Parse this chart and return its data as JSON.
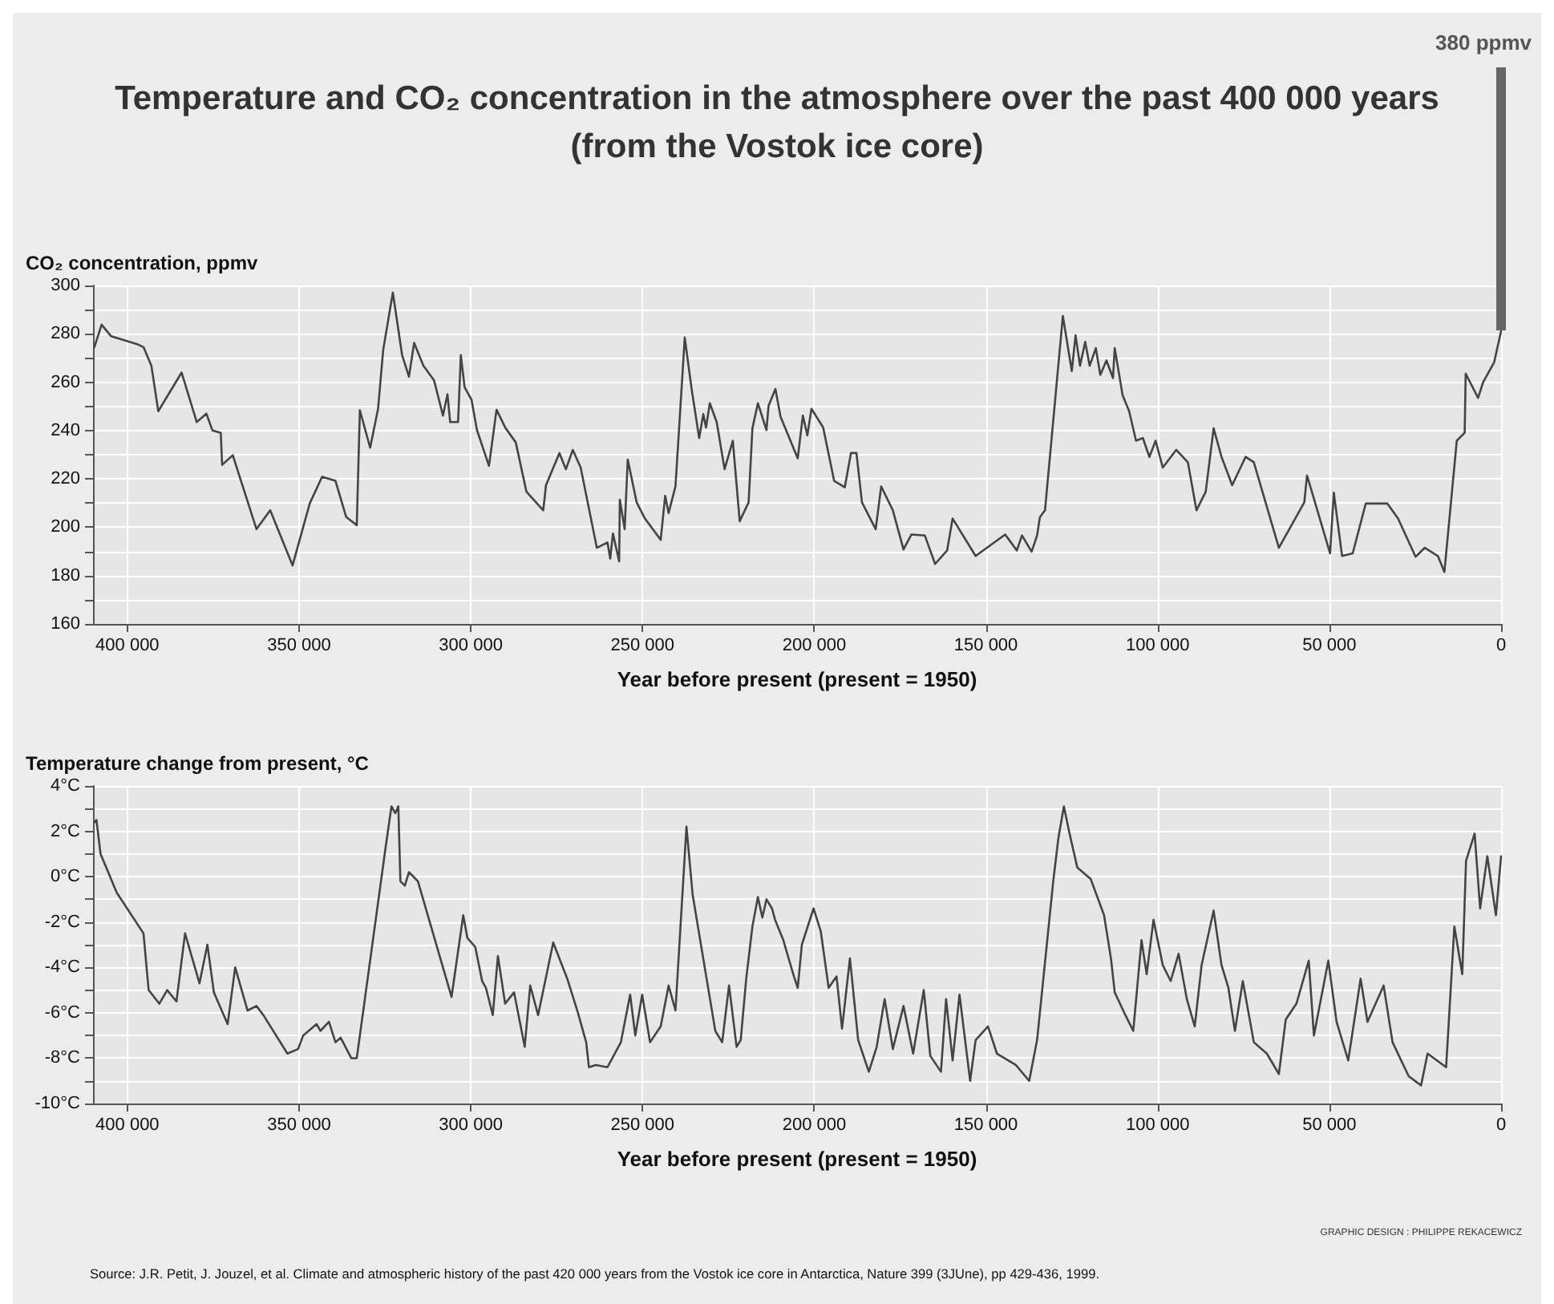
{
  "chart_data": [
    {
      "type": "line",
      "title": "Temperature and CO₂ concentration in the atmosphere over the past 400 000 years",
      "subtitle": "(from the Vostok ice core)",
      "ylabel": "CO₂ concentration, ppmv",
      "xlabel": "Year before present (present = 1950)",
      "color": "#444444",
      "grid": true,
      "x": [
        409600,
        407500,
        404700,
        396900,
        395300,
        393000,
        391000,
        384200,
        379800,
        377000,
        375200,
        372800,
        372400,
        369300,
        362400,
        358400,
        351900,
        346900,
        343300,
        339400,
        336300,
        333200,
        332300,
        329300,
        327000,
        325500,
        322700,
        320000,
        318000,
        316500,
        313800,
        310700,
        308100,
        306800,
        306000,
        303700,
        302900,
        301800,
        299800,
        298200,
        294700,
        292500,
        290000,
        286900,
        283800,
        278900,
        278100,
        274200,
        272300,
        270300,
        268000,
        263300,
        260200,
        259400,
        258600,
        256800,
        256600,
        255200,
        254300,
        251700,
        249300,
        244700,
        243400,
        242400,
        240400,
        237700,
        235700,
        233500,
        232300,
        231500,
        230400,
        228400,
        226100,
        223700,
        221700,
        219100,
        218000,
        216400,
        213900,
        213300,
        211300,
        209800,
        204800,
        203300,
        202000,
        200800,
        197400,
        194200,
        191100,
        189300,
        187700,
        186100,
        182100,
        180500,
        177100,
        174000,
        171700,
        167800,
        164800,
        161300,
        159700,
        153000,
        144400,
        141000,
        139500,
        136700,
        135100,
        134300,
        132800,
        127600,
        125000,
        123900,
        122600,
        121100,
        119800,
        118000,
        116700,
        114900,
        113000,
        112500,
        110200,
        108300,
        106300,
        104300,
        102400,
        100600,
        98500,
        94600,
        91200,
        88700,
        86000,
        83700,
        81400,
        78300,
        74400,
        72000,
        64700,
        57300,
        56500,
        49800,
        48700,
        46300,
        43200,
        39400,
        33100,
        30000,
        24900,
        22200,
        18400,
        16500,
        12900,
        10600,
        10300,
        6700,
        5200,
        2000,
        0
      ],
      "values": [
        274.5,
        283.8,
        279,
        275.6,
        274.5,
        266.8,
        248,
        264,
        243.5,
        247,
        240,
        239,
        225.8,
        229.8,
        199.2,
        207,
        184.2,
        209.8,
        220.9,
        219.2,
        204.3,
        200.8,
        248.4,
        232.9,
        249,
        273.4,
        297.1,
        271.2,
        262.3,
        276.3,
        266.8,
        260.8,
        246.2,
        255,
        243.5,
        243.5,
        271.2,
        257.9,
        252.8,
        240.2,
        225.4,
        248.6,
        241.3,
        235.1,
        214.7,
        207,
        217.4,
        230.7,
        224,
        232,
        224.7,
        191.5,
        193.7,
        187,
        197.4,
        185.9,
        211.4,
        199.2,
        228,
        210.3,
        203.6,
        194.8,
        213,
        205.9,
        216.9,
        278.5,
        257.2,
        236.9,
        246.8,
        241.3,
        251.3,
        243.5,
        224,
        235.8,
        202.5,
        210.3,
        240.9,
        251.3,
        240.2,
        250.2,
        257.2,
        245.7,
        228.5,
        246.2,
        238,
        249,
        241.3,
        219.2,
        216.5,
        230.7,
        230.7,
        210.3,
        199.2,
        216.9,
        207,
        190.8,
        197,
        196.6,
        184.8,
        190.4,
        203.6,
        188.1,
        197,
        190.4,
        196.6,
        189.9,
        196.6,
        204.1,
        207,
        287.4,
        264.6,
        279.4,
        266.8,
        276.7,
        266.8,
        274.1,
        263,
        269,
        261.7,
        274.1,
        254.6,
        248,
        235.8,
        236.9,
        229.1,
        235.8,
        224.7,
        232,
        226.9,
        207,
        214.7,
        240.9,
        229.1,
        217.4,
        229.1,
        226.9,
        191.5,
        210.3,
        221.4,
        189.2,
        214.3,
        188.1,
        189.2,
        209.8,
        209.8,
        203.6,
        187.8,
        191.5,
        188.1,
        181.5,
        235.8,
        239.1,
        263.5,
        253.5,
        260.1,
        268.3,
        281.2
      ],
      "xlim": [
        410000,
        0
      ],
      "xticks": [
        {
          "value": 400000,
          "label": "400 000"
        },
        {
          "value": 350000,
          "label": "350 000"
        },
        {
          "value": 300000,
          "label": "300 000"
        },
        {
          "value": 250000,
          "label": "250 000"
        },
        {
          "value": 200000,
          "label": "200 000"
        },
        {
          "value": 150000,
          "label": "150 000"
        },
        {
          "value": 100000,
          "label": "100 000"
        },
        {
          "value": 50000,
          "label": "50 000"
        },
        0
      ],
      "ylim": [
        160,
        300
      ],
      "yticks": [
        160,
        {
          "value": 170,
          "label": null
        },
        180,
        {
          "value": 190,
          "label": null
        },
        200,
        {
          "value": 210,
          "label": null
        },
        220,
        {
          "value": 230,
          "label": null
        },
        240,
        {
          "value": 250,
          "label": null
        },
        260,
        {
          "value": 270,
          "label": null
        },
        280,
        {
          "value": 290,
          "label": null
        },
        300
      ],
      "annotations": [
        "380 ppmv"
      ]
    },
    {
      "type": "line",
      "ylabel": "Temperature change from present, °C",
      "xlabel": "Year before present (present = 1950)",
      "color": "#444444",
      "grid": true,
      "x": [
        409600,
        409000,
        407800,
        403100,
        395300,
        393800,
        390700,
        388400,
        385700,
        383200,
        379000,
        376700,
        374800,
        370800,
        368600,
        365000,
        362400,
        360400,
        353400,
        350300,
        348800,
        344900,
        343800,
        341300,
        339400,
        337900,
        334800,
        333200,
        324700,
        323100,
        322000,
        321100,
        320500,
        319200,
        318000,
        315400,
        305600,
        302200,
        301000,
        298700,
        296700,
        295600,
        293600,
        292100,
        290000,
        287400,
        284300,
        282700,
        280400,
        276000,
        271900,
        268800,
        266400,
        265600,
        263600,
        260200,
        256300,
        253600,
        252100,
        250100,
        247800,
        244700,
        242400,
        240400,
        237200,
        235400,
        228800,
        226800,
        224800,
        222600,
        221400,
        219800,
        218000,
        216400,
        215100,
        213900,
        212300,
        211400,
        209000,
        205900,
        204800,
        203600,
        200200,
        198100,
        195800,
        193500,
        191900,
        189600,
        187200,
        184100,
        181800,
        179500,
        177100,
        174000,
        171200,
        168100,
        166200,
        163100,
        161600,
        159700,
        157700,
        154600,
        153000,
        149400,
        146800,
        141300,
        137400,
        135100,
        130400,
        128900,
        127300,
        125800,
        123400,
        119500,
        115600,
        113600,
        112500,
        109400,
        107100,
        104700,
        103200,
        101200,
        98500,
        96200,
        93900,
        91500,
        89200,
        87200,
        83700,
        81400,
        79400,
        77500,
        75200,
        72000,
        68200,
        64700,
        62700,
        59600,
        56000,
        54500,
        50300,
        47900,
        44500,
        40900,
        38900,
        34200,
        31600,
        26900,
        23300,
        21400,
        16000,
        13600,
        11300,
        10200,
        7700,
        6100,
        4000,
        1500,
        0
      ],
      "values": [
        2.4,
        2.5,
        1.0,
        -0.7,
        -2.5,
        -5.0,
        -5.6,
        -5.0,
        -5.5,
        -2.5,
        -4.7,
        -3.0,
        -5.1,
        -6.5,
        -4.0,
        -5.9,
        -5.7,
        -6.1,
        -7.8,
        -7.6,
        -7.0,
        -6.5,
        -6.8,
        -6.4,
        -7.3,
        -7.1,
        -8.0,
        -8.0,
        1.4,
        3.1,
        2.8,
        3.1,
        -0.2,
        -0.4,
        0.2,
        -0.2,
        -5.3,
        -1.7,
        -2.7,
        -3.1,
        -4.6,
        -4.9,
        -6.1,
        -3.5,
        -5.6,
        -5.1,
        -7.5,
        -4.8,
        -6.1,
        -2.9,
        -4.5,
        -6.0,
        -7.3,
        -8.4,
        -8.3,
        -8.4,
        -7.3,
        -5.2,
        -7.0,
        -5.2,
        -7.3,
        -6.6,
        -4.8,
        -5.9,
        2.2,
        -0.8,
        -6.8,
        -7.3,
        -4.8,
        -7.5,
        -7.2,
        -4.5,
        -2.2,
        -0.9,
        -1.8,
        -1.0,
        -1.4,
        -1.9,
        -2.8,
        -4.4,
        -4.9,
        -3.0,
        -1.4,
        -2.4,
        -4.9,
        -4.4,
        -6.7,
        -3.6,
        -7.2,
        -8.6,
        -7.5,
        -5.4,
        -7.6,
        -5.7,
        -7.8,
        -5.0,
        -7.9,
        -8.6,
        -5.4,
        -8.1,
        -5.2,
        -9.0,
        -7.2,
        -6.6,
        -7.8,
        -8.3,
        -9.0,
        -7.2,
        -0.2,
        1.7,
        3.1,
        2.0,
        0.4,
        -0.1,
        -1.7,
        -3.6,
        -5.1,
        -6.1,
        -6.8,
        -2.8,
        -4.3,
        -1.9,
        -3.9,
        -4.6,
        -3.4,
        -5.4,
        -6.6,
        -3.9,
        -1.5,
        -3.9,
        -4.9,
        -6.8,
        -4.6,
        -7.3,
        -7.8,
        -8.7,
        -6.3,
        -5.6,
        -3.7,
        -7.0,
        -3.7,
        -6.4,
        -8.1,
        -4.5,
        -6.4,
        -4.8,
        -7.3,
        -8.8,
        -9.2,
        -7.8,
        -8.4,
        -2.2,
        -4.3,
        0.7,
        1.9,
        -1.4,
        0.9,
        -1.7,
        0.9
      ],
      "xlim": [
        410000,
        0
      ],
      "xticks": [
        {
          "value": 400000,
          "label": "400 000"
        },
        {
          "value": 350000,
          "label": "350 000"
        },
        {
          "value": 300000,
          "label": "300 000"
        },
        {
          "value": 250000,
          "label": "250 000"
        },
        {
          "value": 200000,
          "label": "200 000"
        },
        {
          "value": 150000,
          "label": "150 000"
        },
        {
          "value": 100000,
          "label": "100 000"
        },
        {
          "value": 50000,
          "label": "50 000"
        },
        0
      ],
      "ylim": [
        -10,
        4
      ],
      "yticks": [
        {
          "value": -10,
          "label": "-10°C"
        },
        {
          "value": -9,
          "label": null
        },
        {
          "value": -8,
          "label": "-8°C"
        },
        {
          "value": -7,
          "label": null
        },
        {
          "value": -6,
          "label": "-6°C"
        },
        {
          "value": -5,
          "label": null
        },
        {
          "value": -4,
          "label": "-4°C"
        },
        {
          "value": -3,
          "label": null
        },
        {
          "value": -2,
          "label": "-2°C"
        },
        {
          "value": -1,
          "label": null
        },
        {
          "value": 0,
          "label": "0°C"
        },
        {
          "value": 1,
          "label": null
        },
        {
          "value": 2,
          "label": "2°C"
        },
        {
          "value": 3,
          "label": null
        },
        {
          "value": 4,
          "label": "4°C"
        }
      ],
      "annotations": [
        "GRAPHIC DESIGN : PHILIPPE REKACEWICZ",
        "Source: J.R. Petit, J. Jouzel, et al. Climate and atmospheric history of the past 420 000 years from the Vostok ice core in Antarctica, Nature 399 (3JUne), pp 429-436, 1999."
      ]
    }
  ]
}
